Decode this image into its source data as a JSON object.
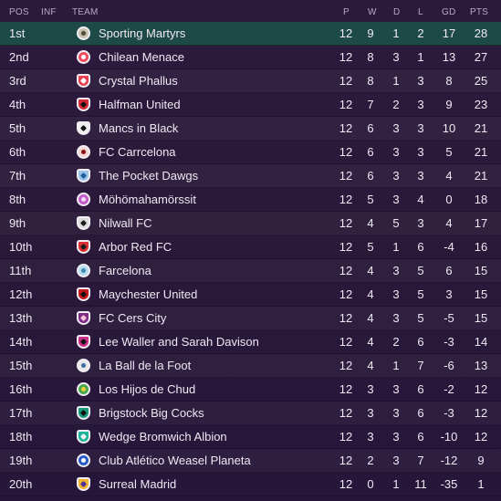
{
  "header": {
    "pos": "POS",
    "inf": "INF",
    "team": "TEAM",
    "p": "P",
    "w": "W",
    "d": "D",
    "l": "L",
    "gd": "GD",
    "pts": "PTS"
  },
  "teams": [
    {
      "pos": "1st",
      "name": "Sporting Martyrs",
      "p": "12",
      "w": "9",
      "d": "1",
      "l": "2",
      "gd": "17",
      "pts": "28",
      "icon": "sporting-martyrs-crest-icon",
      "color": "#c8c0a8",
      "inner": "#4b4b3b"
    },
    {
      "pos": "2nd",
      "name": "Chilean Menace",
      "p": "12",
      "w": "8",
      "d": "3",
      "l": "1",
      "gd": "13",
      "pts": "27",
      "icon": "chilean-menace-crest-icon",
      "color": "#ef4d5f",
      "inner": "#ffffff"
    },
    {
      "pos": "3rd",
      "name": "Crystal Phallus",
      "p": "12",
      "w": "8",
      "d": "1",
      "l": "3",
      "gd": "8",
      "pts": "25",
      "icon": "crystal-phallus-crest-icon",
      "color": "#e8414d",
      "inner": "#ffffff"
    },
    {
      "pos": "4th",
      "name": "Halfman United",
      "p": "12",
      "w": "7",
      "d": "2",
      "l": "3",
      "gd": "9",
      "pts": "23",
      "icon": "halfman-united-crest-icon",
      "color": "#d52b37",
      "inner": "#111111"
    },
    {
      "pos": "5th",
      "name": "Mancs in Black",
      "p": "12",
      "w": "6",
      "d": "3",
      "l": "3",
      "gd": "10",
      "pts": "21",
      "icon": "mancs-in-black-crest-icon",
      "color": "#f0f0f0",
      "inner": "#151515"
    },
    {
      "pos": "6th",
      "name": "FC Carrcelona",
      "p": "12",
      "w": "6",
      "d": "3",
      "l": "3",
      "gd": "5",
      "pts": "21",
      "icon": "fc-carrcelona-crest-icon",
      "color": "#f2d4d2",
      "inner": "#8a0c16"
    },
    {
      "pos": "7th",
      "name": "The Pocket Dawgs",
      "p": "12",
      "w": "6",
      "d": "3",
      "l": "3",
      "gd": "4",
      "pts": "21",
      "icon": "the-pocket-dawgs-crest-icon",
      "color": "#9bc5e8",
      "inner": "#1f5f9c"
    },
    {
      "pos": "8th",
      "name": "Möhömahamörssit",
      "p": "12",
      "w": "5",
      "d": "3",
      "l": "4",
      "gd": "0",
      "pts": "18",
      "icon": "mohomahamorssit-crest-icon",
      "color": "#c25bc7",
      "inner": "#f3d9f8"
    },
    {
      "pos": "9th",
      "name": "Nilwall FC",
      "p": "12",
      "w": "4",
      "d": "5",
      "l": "3",
      "gd": "4",
      "pts": "17",
      "icon": "nilwall-fc-crest-icon",
      "color": "#dcdcdc",
      "inner": "#1b1b1b"
    },
    {
      "pos": "10th",
      "name": "Arbor Red FC",
      "p": "12",
      "w": "5",
      "d": "1",
      "l": "6",
      "gd": "-4",
      "pts": "16",
      "icon": "arbor-red-fc-crest-icon",
      "color": "#dc2f33",
      "inner": "#1a1a1a"
    },
    {
      "pos": "11th",
      "name": "Farcelona",
      "p": "12",
      "w": "4",
      "d": "3",
      "l": "5",
      "gd": "6",
      "pts": "15",
      "icon": "farcelona-crest-icon",
      "color": "#b6ddef",
      "inner": "#3e8ab4"
    },
    {
      "pos": "12th",
      "name": "Maychester United",
      "p": "12",
      "w": "4",
      "d": "3",
      "l": "5",
      "gd": "3",
      "pts": "15",
      "icon": "maychester-united-crest-icon",
      "color": "#c4161d",
      "inner": "#111111"
    },
    {
      "pos": "13th",
      "name": "FC Cers City",
      "p": "12",
      "w": "4",
      "d": "3",
      "l": "5",
      "gd": "-5",
      "pts": "15",
      "icon": "fc-cers-city-crest-icon",
      "color": "#7d2b86",
      "inner": "#f3c2d8"
    },
    {
      "pos": "14th",
      "name": "Lee Waller and Sarah Davison",
      "p": "12",
      "w": "4",
      "d": "2",
      "l": "6",
      "gd": "-3",
      "pts": "14",
      "icon": "lee-waller-sarah-davison-crest-icon",
      "color": "#ca2e87",
      "inner": "#111111"
    },
    {
      "pos": "15th",
      "name": "La Ball de la Foot",
      "p": "12",
      "w": "4",
      "d": "1",
      "l": "7",
      "gd": "-6",
      "pts": "13",
      "icon": "la-ball-de-la-foot-crest-icon",
      "color": "#e7e7e7",
      "inner": "#3c6ca0"
    },
    {
      "pos": "16th",
      "name": "Los Hijos de Chud",
      "p": "12",
      "w": "3",
      "d": "3",
      "l": "6",
      "gd": "-2",
      "pts": "12",
      "icon": "los-hijos-de-chud-crest-icon",
      "color": "#4aa74d",
      "inner": "#f0cf3c"
    },
    {
      "pos": "17th",
      "name": "Brigstock Big Cocks",
      "p": "12",
      "w": "3",
      "d": "3",
      "l": "6",
      "gd": "-3",
      "pts": "12",
      "icon": "brigstock-big-cocks-crest-icon",
      "color": "#1c9b7c",
      "inner": "#111111"
    },
    {
      "pos": "18th",
      "name": "Wedge Bromwich Albion",
      "p": "12",
      "w": "3",
      "d": "3",
      "l": "6",
      "gd": "-10",
      "pts": "12",
      "icon": "wedge-bromwich-albion-crest-icon",
      "color": "#1cb39a",
      "inner": "#f3f3f3"
    },
    {
      "pos": "19th",
      "name": "Club Atlético Weasel Planeta",
      "p": "12",
      "w": "2",
      "d": "3",
      "l": "7",
      "gd": "-12",
      "pts": "9",
      "icon": "club-atletico-weasel-planeta-crest-icon",
      "color": "#275ac6",
      "inner": "#ffffff"
    },
    {
      "pos": "20th",
      "name": "Surreal Madrid",
      "p": "12",
      "w": "0",
      "d": "1",
      "l": "11",
      "gd": "-35",
      "pts": "1",
      "icon": "surreal-madrid-crest-icon",
      "color": "#f0b52d",
      "inner": "#4b2e9b"
    }
  ]
}
